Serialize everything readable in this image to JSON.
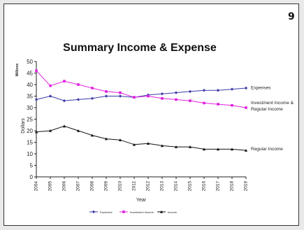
{
  "page": {
    "number": "9"
  },
  "chart_data": {
    "type": "line",
    "title": "Summary Income & Expense",
    "xlabel": "Year",
    "ylabel": "Dollars",
    "yunit": "Millions",
    "ylim": [
      0,
      50
    ],
    "yticks": [
      0,
      5,
      10,
      15,
      20,
      25,
      30,
      35,
      40,
      45,
      50
    ],
    "x": [
      "2004",
      "2005",
      "2006",
      "2007",
      "2008",
      "2009",
      "2010",
      "2011",
      "2012",
      "2013",
      "2014",
      "2015",
      "2016",
      "2017",
      "2018",
      "2019"
    ],
    "grid": false,
    "legend_position": "bottom",
    "series": [
      {
        "name": "Expenses",
        "color": "#3a3aa8",
        "marker": "diamond",
        "values": [
          33.5,
          35,
          33,
          33.5,
          34,
          35,
          35,
          34.5,
          35.5,
          36,
          36.5,
          37,
          37.5,
          37.5,
          38,
          38.5
        ]
      },
      {
        "name": "Investment Income",
        "color": "#e020e0",
        "marker": "square",
        "values": [
          46,
          39.5,
          41.5,
          40,
          38.5,
          37,
          36.5,
          34.5,
          35,
          34,
          33.5,
          33,
          32,
          31.5,
          31,
          30
        ]
      },
      {
        "name": "Income",
        "color": "#111111",
        "marker": "triangle",
        "values": [
          19.5,
          20,
          22,
          20,
          18,
          16.5,
          16,
          14,
          14.5,
          13.5,
          13,
          13,
          12,
          12,
          12,
          11.5
        ]
      }
    ],
    "annotations": [
      {
        "name": "Expenses",
        "lines": [
          "Expenses"
        ],
        "anchor_value": 39
      },
      {
        "name": "Investment Income & Regular Income",
        "lines": [
          "Investment Income &",
          "Regular Income"
        ],
        "anchor_value": 32.5
      },
      {
        "name": "Regular Income",
        "lines": [
          "Regular Income"
        ],
        "anchor_value": 12.5
      }
    ]
  }
}
